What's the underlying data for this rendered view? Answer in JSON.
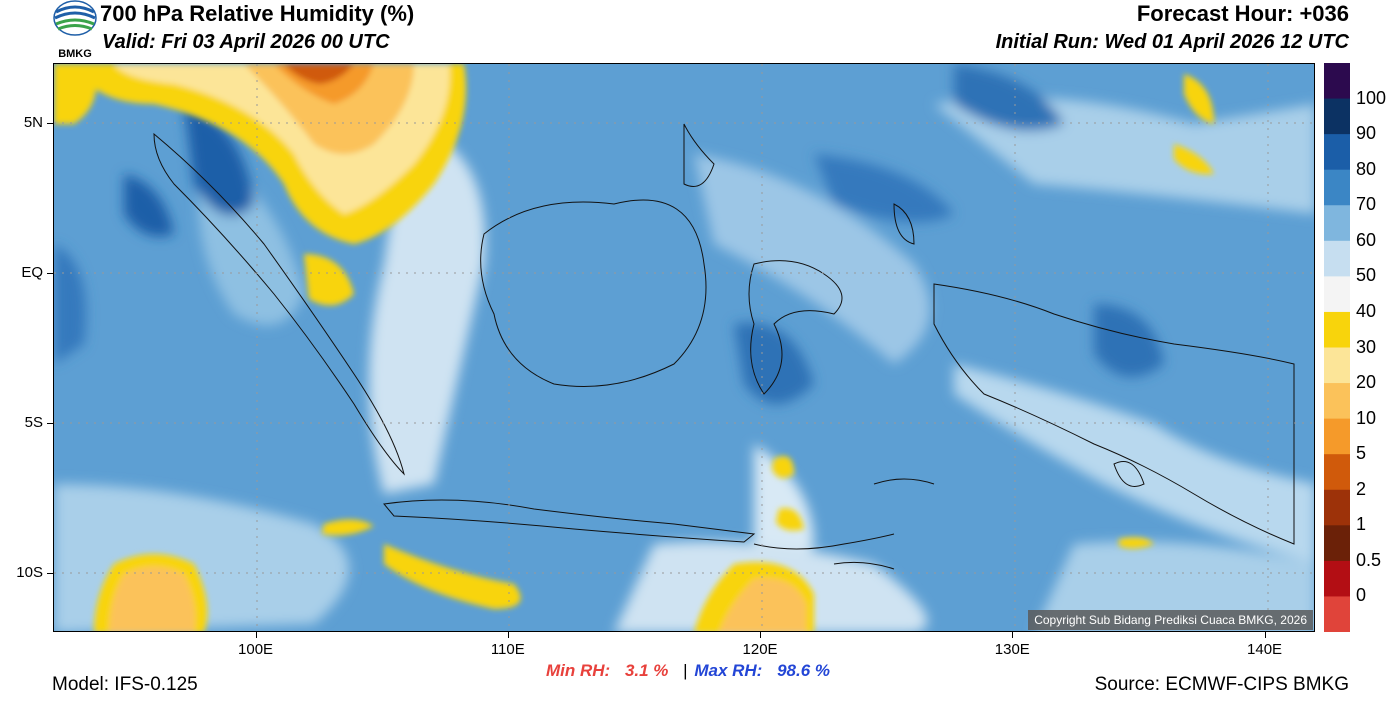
{
  "header": {
    "title": "700 hPa Relative Humidity (%)",
    "valid": "Valid: Fri 03 April 2026 00 UTC",
    "forecast_hour": "Forecast Hour: +036",
    "initial_run": "Initial Run: Wed 01 April 2026 12 UTC"
  },
  "logo": {
    "text": "BMKG",
    "colors": {
      "blue": "#1f5fa8",
      "green": "#3aa34a"
    }
  },
  "map": {
    "lat_labels": [
      "5N",
      "EQ",
      "5S",
      "10S"
    ],
    "lon_labels": [
      "100E",
      "110E",
      "120E",
      "130E",
      "140E"
    ],
    "lat_values": [
      5,
      0,
      -5,
      -10
    ],
    "lon_values": [
      100,
      110,
      120,
      130,
      140
    ],
    "copyright": "Copyright Sub Bidang Prediksi Cuaca BMKG, 2026"
  },
  "colorbar": {
    "labels": [
      "100",
      "90",
      "80",
      "70",
      "60",
      "50",
      "40",
      "30",
      "20",
      "10",
      "5",
      "2",
      "1",
      "0.5",
      "0"
    ],
    "colors": [
      "#2c0a4e",
      "#0c3263",
      "#1b5ea8",
      "#3b86c5",
      "#7fb6de",
      "#c6def0",
      "#f4f4f4",
      "#f8d40c",
      "#fce598",
      "#fbc25a",
      "#f59a2a",
      "#d05a0b",
      "#9d3209",
      "#6b2108",
      "#b30e14",
      "#e0443a"
    ]
  },
  "stats": {
    "min_label": "Min RH:",
    "min_value": "3.1 %",
    "separator": "|",
    "max_label": "Max RH:",
    "max_value": "98.6 %",
    "min_color": "#e8413c",
    "max_color": "#2346d6"
  },
  "footer": {
    "model": "Model: IFS-0.125",
    "source": "Source: ECMWF-CIPS BMKG"
  }
}
